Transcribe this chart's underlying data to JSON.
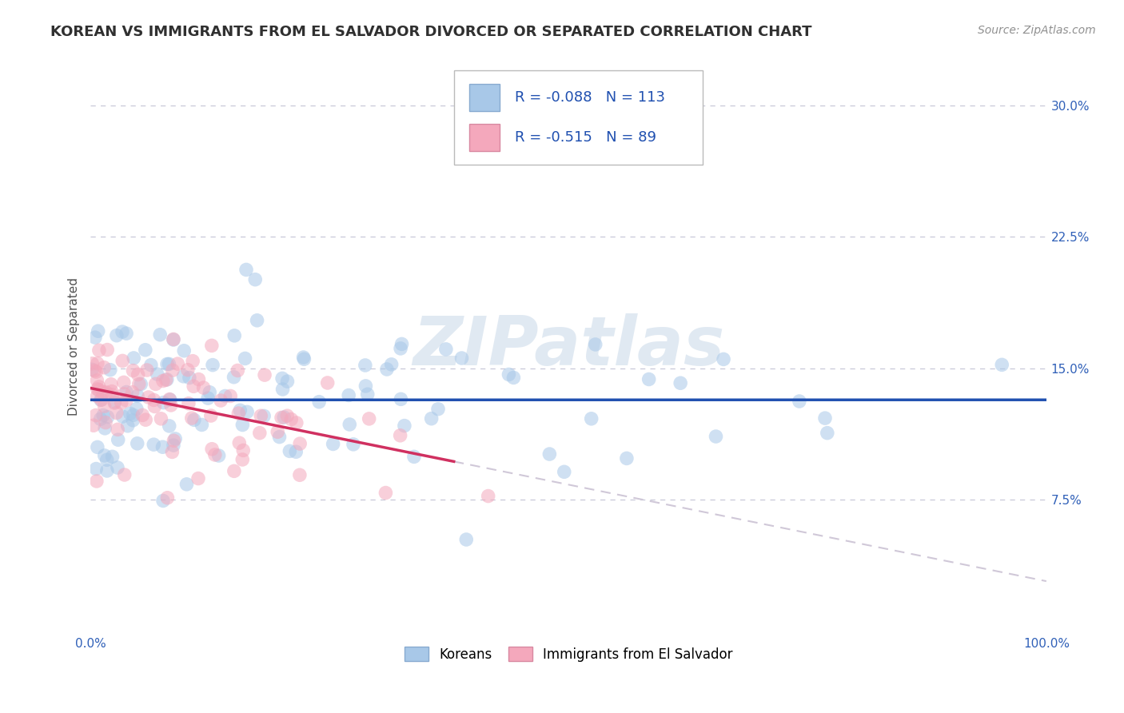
{
  "title": "KOREAN VS IMMIGRANTS FROM EL SALVADOR DIVORCED OR SEPARATED CORRELATION CHART",
  "source": "Source: ZipAtlas.com",
  "ylabel": "Divorced or Separated",
  "xlim": [
    0.0,
    100.0
  ],
  "ylim": [
    0.0,
    32.5
  ],
  "yticks": [
    0.0,
    7.5,
    15.0,
    22.5,
    30.0
  ],
  "xtick_labels": [
    "0.0%",
    "100.0%"
  ],
  "ytick_labels": [
    "",
    "7.5%",
    "15.0%",
    "22.5%",
    "30.0%"
  ],
  "blue_color": "#a8c8e8",
  "pink_color": "#f4a8bc",
  "blue_line_color": "#2050b0",
  "pink_line_color": "#d03060",
  "dash_color": "#d0c8d8",
  "watermark_text": "ZIPatlas",
  "legend_R_blue": "-0.088",
  "legend_N_blue": "113",
  "legend_R_pink": "-0.515",
  "legend_N_pink": "89",
  "legend_label_blue": "Koreans",
  "legend_label_pink": "Immigrants from El Salvador",
  "blue_N": 113,
  "pink_N": 89,
  "grid_color": "#c8c8d8",
  "background_color": "#ffffff",
  "title_fontsize": 13,
  "axis_label_fontsize": 11,
  "tick_fontsize": 11,
  "source_fontsize": 10,
  "blue_trend_start_y": 13.2,
  "blue_trend_end_y": 11.8,
  "pink_trend_start_y": 13.8,
  "pink_trend_end_y": 5.0,
  "pink_solid_end_x": 38.0
}
